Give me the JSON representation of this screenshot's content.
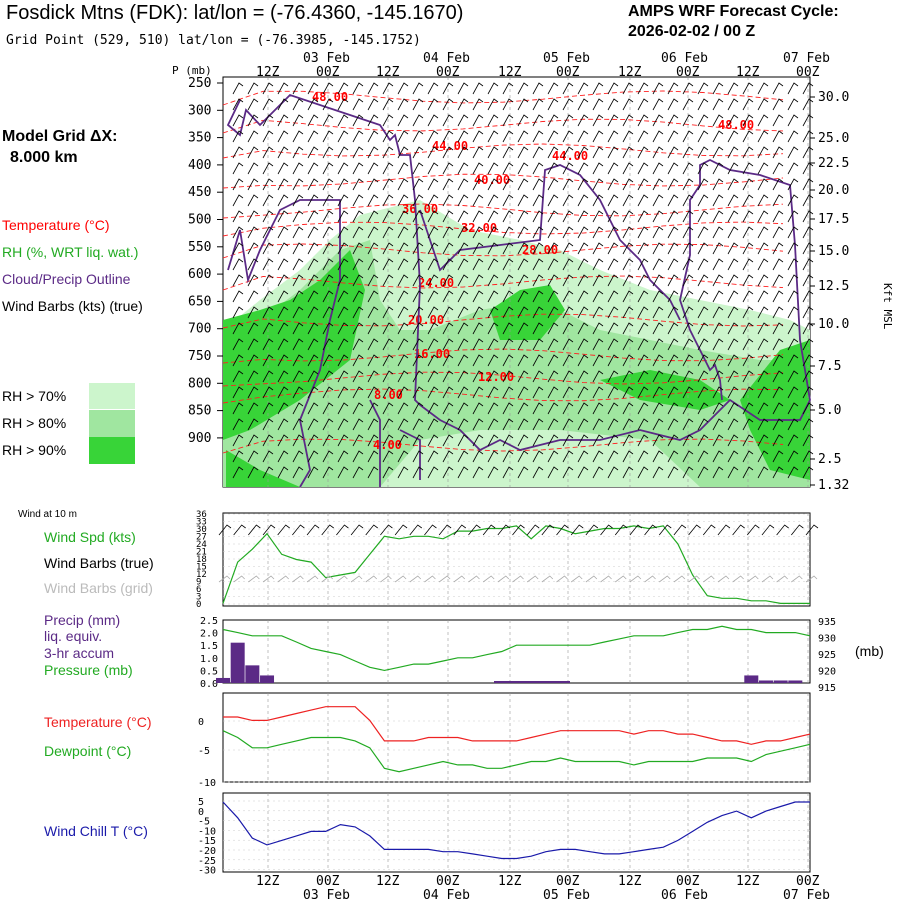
{
  "header": {
    "title": "Fosdick Mtns (FDK):  lat/lon = (-76.4360, -145.1670)",
    "subtitle": "Grid Point (529, 510) lat/lon = (-76.3985, -145.1752)",
    "cycle_label": "AMPS WRF Forecast Cycle:",
    "cycle_value": "2026-02-02 / 00  Z"
  },
  "legend": {
    "model_grid": "Model Grid ΔX:",
    "grid_value": "8.000 km",
    "temperature": "Temperature (°C)",
    "rh": "RH (%, WRT liq. wat.)",
    "cloud": "Cloud/Precip Outline",
    "barbs": "Wind Barbs (kts) (true)",
    "rh70": "RH > 70%",
    "rh80": "RH > 80%",
    "rh90": "RH > 90%",
    "colors": {
      "rh70": "#ccf5cc",
      "rh80": "#a0e6a0",
      "rh90": "#38d438",
      "temp": "#ff0000",
      "cloud": "#5b2a86"
    }
  },
  "time_axis": {
    "top_hours": [
      "12Z",
      "00Z",
      "12Z",
      "00Z",
      "12Z",
      "00Z",
      "12Z",
      "00Z",
      "12Z",
      "00Z"
    ],
    "top_dates": [
      "03 Feb",
      "04 Feb",
      "05 Feb",
      "06 Feb",
      "07 Feb"
    ],
    "bottom_hours": [
      "12Z",
      "00Z",
      "12Z",
      "00Z",
      "12Z",
      "00Z",
      "12Z",
      "00Z",
      "12Z",
      "00Z"
    ],
    "bottom_dates": [
      "03 Feb",
      "04 Feb",
      "05 Feb",
      "06 Feb",
      "07 Feb"
    ]
  },
  "cross_section": {
    "p_label": "P (mb)",
    "pressure_ticks": [
      "250",
      "300",
      "350",
      "400",
      "450",
      "500",
      "550",
      "600",
      "650",
      "700",
      "750",
      "800",
      "850",
      "900"
    ],
    "height_ticks": [
      "30.0",
      "25.0",
      "22.5",
      "20.0",
      "17.5",
      "15.0",
      "12.5",
      "10.0",
      "7.5",
      "5.0",
      "2.5",
      "1.32"
    ],
    "height_label": "Kft MSL",
    "temp_labels": [
      "48.00",
      "44.00",
      "44.00",
      "48.00",
      "40.00",
      "36.00",
      "32.00",
      "28.00",
      "24.00",
      "20.00",
      "16.00",
      "12.00",
      "8.00",
      "4.00"
    ]
  },
  "panels": {
    "wind_title": "Wind at 10 m",
    "wind_spd": "Wind Spd (kts)",
    "wind_barbs_true": "Wind Barbs (true)",
    "wind_barbs_grid": "Wind Barbs (grid)",
    "wind_ticks": [
      "36",
      "33",
      "30",
      "27",
      "24",
      "21",
      "18",
      "15",
      "12",
      "9",
      "6",
      "3",
      "0"
    ],
    "precip": "Precip (mm)",
    "precip2": "liq. equiv.",
    "precip3": "3-hr accum",
    "pressure": "Pressure (mb)",
    "pressure_unit": "(mb)",
    "precip_ticks": [
      "2.5",
      "2.0",
      "1.5",
      "1.0",
      "0.5",
      "0.0"
    ],
    "pressure_ticks": [
      "935",
      "930",
      "925",
      "920",
      "915"
    ],
    "temperature": "Temperature (°C)",
    "dewpoint": "Dewpoint (°C)",
    "temp_ticks": [
      "0",
      "-5",
      "-10"
    ],
    "windchill": "Wind Chill T (°C)",
    "wc_ticks": [
      "5",
      "0",
      "-5",
      "-10",
      "-15",
      "-20",
      "-25",
      "-30"
    ]
  },
  "chart_data": {
    "type": "line",
    "x_hours": [
      0,
      3,
      6,
      9,
      12,
      15,
      18,
      21,
      24,
      27,
      30,
      33,
      36,
      39,
      42,
      45,
      48,
      51,
      54,
      57,
      60,
      63,
      66,
      69,
      72,
      75,
      78,
      81,
      84,
      87,
      90,
      93,
      96,
      99,
      102,
      105,
      108,
      111,
      114,
      117,
      120
    ],
    "wind_speed_kts": [
      1,
      17,
      22,
      28,
      20,
      18,
      17,
      11,
      12,
      13,
      20,
      27,
      26,
      27,
      27,
      26,
      29,
      29,
      30,
      30,
      31,
      26,
      31,
      30,
      28,
      29,
      30,
      30,
      31,
      30,
      31,
      24,
      12,
      4,
      3,
      3,
      2,
      2,
      1,
      1,
      1
    ],
    "precip_mm": [
      0.2,
      1.6,
      0.7,
      0.3,
      0,
      0,
      0,
      0,
      0,
      0,
      0,
      0,
      0,
      0,
      0,
      0,
      0,
      0,
      0,
      0,
      0,
      0,
      0,
      0,
      0,
      0,
      0,
      0,
      0,
      0,
      0,
      0,
      0,
      0,
      0,
      0,
      0.3,
      0.1,
      0.1,
      0.1,
      0
    ],
    "precip_mm_y_range": [
      0,
      2.5
    ],
    "pressure_mb": [
      932,
      931,
      930,
      930,
      930,
      928,
      926,
      925,
      924,
      922,
      920,
      919,
      920,
      921,
      921,
      922,
      923,
      923,
      924,
      925,
      927,
      927,
      927,
      927,
      927,
      927,
      928,
      929,
      930,
      930,
      930,
      931,
      932,
      932,
      933,
      932,
      932,
      931,
      931,
      931,
      930
    ],
    "pressure_mb_y_range": [
      915,
      935
    ],
    "temperature_c": [
      -0.5,
      -0.5,
      -1,
      -1,
      -0.5,
      0,
      0.5,
      1,
      1,
      1,
      -1,
      -4,
      -4,
      -4,
      -3.5,
      -3.5,
      -3.5,
      -4,
      -4,
      -4,
      -4,
      -3.5,
      -3,
      -2.5,
      -2.5,
      -2.5,
      -2.5,
      -2.5,
      -3,
      -2.5,
      -2.5,
      -3,
      -3,
      -3.5,
      -4,
      -4,
      -4.5,
      -4,
      -4,
      -3.5,
      -3
    ],
    "dewpoint_c": [
      -2.5,
      -3.5,
      -5,
      -5,
      -4.5,
      -4,
      -3.5,
      -3.5,
      -3.5,
      -4,
      -5,
      -8,
      -8.5,
      -8,
      -7.5,
      -7,
      -7.5,
      -7.5,
      -8,
      -8,
      -7.5,
      -7,
      -7,
      -6.5,
      -7,
      -7,
      -7,
      -7,
      -7.5,
      -7,
      -7,
      -7,
      -7,
      -6.5,
      -6.5,
      -6.5,
      -7,
      -6,
      -5.5,
      -5,
      -4.5
    ],
    "temp_y_range": [
      -10,
      3
    ],
    "windchill_c": [
      1,
      -6,
      -15,
      -18,
      -16,
      -14,
      -12,
      -12,
      -9,
      -10,
      -14,
      -20,
      -20,
      -20,
      -20,
      -21,
      -21,
      -22,
      -23,
      -24,
      -24,
      -23,
      -21,
      -20,
      -20,
      -21,
      -22,
      -22,
      -21,
      -20,
      -19,
      -16,
      -12,
      -8,
      -5,
      -3,
      -6,
      -3,
      -1,
      1,
      1
    ],
    "windchill_y_range": [
      -30,
      5
    ]
  }
}
